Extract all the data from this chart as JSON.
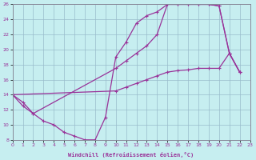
{
  "xlabel": "Windchill (Refroidissement éolien,°C)",
  "bg_color": "#c6eef0",
  "line_color": "#993399",
  "grid_color": "#99bbcc",
  "xmin": 0,
  "xmax": 23,
  "ymin": 8,
  "ymax": 26,
  "xticks": [
    0,
    1,
    2,
    3,
    4,
    5,
    6,
    7,
    8,
    9,
    10,
    11,
    12,
    13,
    14,
    15,
    16,
    17,
    18,
    19,
    20,
    21,
    22,
    23
  ],
  "yticks": [
    8,
    10,
    12,
    14,
    16,
    18,
    20,
    22,
    24,
    26
  ],
  "line1": [
    [
      0,
      14
    ],
    [
      1,
      13
    ],
    [
      2,
      11.5
    ],
    [
      3,
      10.5
    ],
    [
      4,
      10
    ],
    [
      5,
      9
    ],
    [
      6,
      8.5
    ],
    [
      7,
      8
    ],
    [
      8,
      8
    ],
    [
      9,
      11
    ],
    [
      10,
      19
    ],
    [
      11,
      21
    ],
    [
      12,
      23.5
    ],
    [
      13,
      24.5
    ],
    [
      14,
      25
    ],
    [
      15,
      26
    ],
    [
      16,
      26
    ],
    [
      17,
      26
    ],
    [
      18,
      26
    ],
    [
      19,
      26
    ],
    [
      20,
      25.8
    ],
    [
      21,
      19.5
    ],
    [
      22,
      17
    ]
  ],
  "line2": [
    [
      0,
      14
    ],
    [
      1,
      12.5
    ],
    [
      2,
      11.5
    ],
    [
      10,
      17.5
    ],
    [
      11,
      18.5
    ],
    [
      12,
      19.5
    ],
    [
      13,
      20.5
    ],
    [
      14,
      22
    ],
    [
      15,
      26
    ],
    [
      16,
      26
    ],
    [
      17,
      26
    ],
    [
      18,
      26
    ],
    [
      19,
      26
    ],
    [
      20,
      25.8
    ],
    [
      21,
      19.5
    ],
    [
      22,
      17
    ]
  ],
  "line3": [
    [
      0,
      14
    ],
    [
      10,
      14.5
    ],
    [
      11,
      15
    ],
    [
      12,
      15.5
    ],
    [
      13,
      16
    ],
    [
      14,
      16.5
    ],
    [
      15,
      17
    ],
    [
      16,
      17.2
    ],
    [
      17,
      17.3
    ],
    [
      18,
      17.5
    ],
    [
      19,
      17.5
    ],
    [
      20,
      17.5
    ],
    [
      21,
      19.5
    ],
    [
      22,
      17
    ]
  ]
}
